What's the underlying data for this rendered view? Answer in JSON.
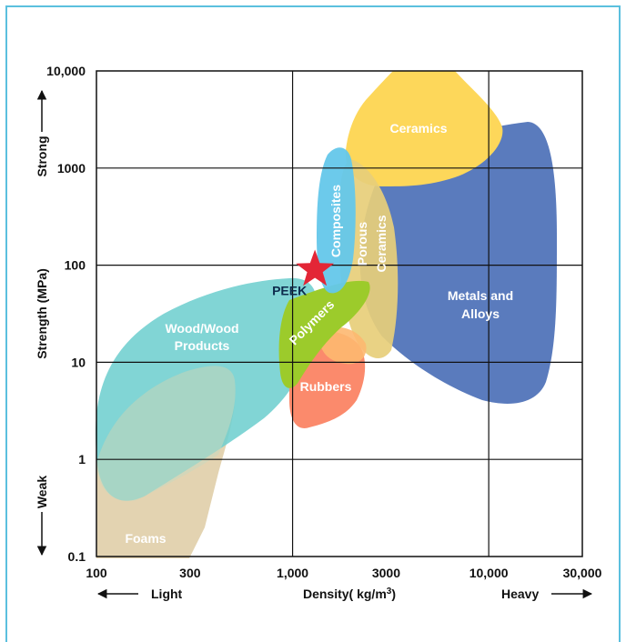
{
  "chart_data": {
    "type": "scatter",
    "title": "",
    "xlabel": "Density( kg/m³)",
    "ylabel": "Strength (MPa)",
    "x_scale": "log",
    "y_scale": "log",
    "xlim": [
      100,
      30000
    ],
    "ylim": [
      0.1,
      10000
    ],
    "grid": true,
    "x_ticks": [
      "100",
      "300",
      "1,000",
      "3000",
      "10,000",
      "30,000"
    ],
    "y_ticks": [
      "0.1",
      "1",
      "10",
      "100",
      "1000",
      "10,000"
    ],
    "x_annotations": {
      "left": "Light",
      "right": "Heavy"
    },
    "y_annotations": {
      "top": "Strong",
      "bottom": "Weak"
    },
    "regions": [
      {
        "name": "Foams",
        "color": "#e3d3b1",
        "label": "Foams"
      },
      {
        "name": "Wood/Wood Products",
        "color": "#6fcfcf",
        "label": "Wood/Wood\nProducts"
      },
      {
        "name": "Metals and Alloys",
        "color": "#5a7bbd",
        "label": "Metals and\nAlloys"
      },
      {
        "name": "Ceramics",
        "color": "#fdd75a",
        "label": "Ceramics"
      },
      {
        "name": "Porous Ceramics",
        "color": "#e7ce7a",
        "label": "Porous\nCeramics"
      },
      {
        "name": "Rubbers",
        "color": "#fb8a6c",
        "label": "Rubbers"
      },
      {
        "name": "Polymers",
        "color": "#9ccb2b",
        "label": "Polymers"
      },
      {
        "name": "Composites",
        "color": "#64c7ea",
        "label": "Composites"
      }
    ],
    "points": [
      {
        "name": "PEEK",
        "x": 1300,
        "y": 90,
        "marker": "star",
        "color": "#e32636"
      }
    ]
  }
}
